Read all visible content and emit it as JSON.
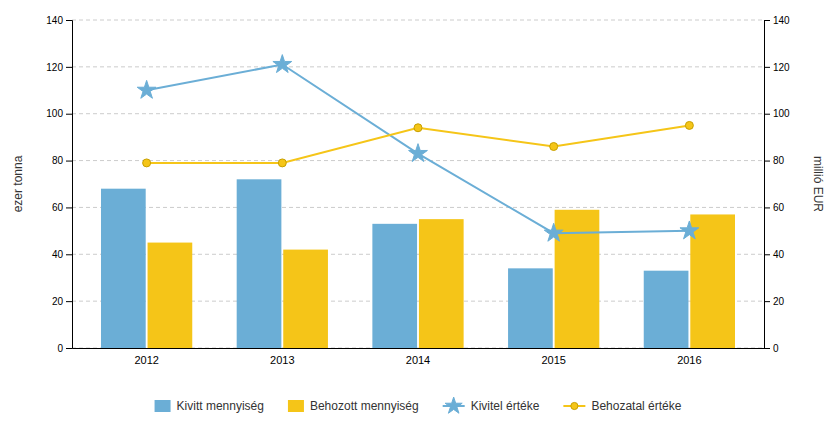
{
  "chart_data": {
    "type": "bar",
    "categories": [
      "2012",
      "2013",
      "2014",
      "2015",
      "2016"
    ],
    "ylabel": "ezer tonna",
    "y2label": "millió EUR",
    "ylim": [
      0,
      140
    ],
    "yticks": [
      0,
      20,
      40,
      60,
      80,
      100,
      120,
      140
    ],
    "y2lim": [
      0,
      140
    ],
    "y2ticks": [
      0,
      20,
      40,
      60,
      80,
      100,
      120,
      140
    ],
    "grid": true,
    "legend": "bottom",
    "series": [
      {
        "name": "Kivitt mennyiség",
        "type": "bar",
        "color": "#6BAED6",
        "values": [
          68,
          72,
          53,
          34,
          33
        ]
      },
      {
        "name": "Behozott mennyiség",
        "type": "bar",
        "color": "#F5C518",
        "values": [
          45,
          42,
          55,
          59,
          57
        ]
      },
      {
        "name": "Kivitel értéke",
        "type": "line",
        "axis": "y2",
        "marker": "star",
        "color": "#6BAED6",
        "values": [
          110,
          121,
          83,
          49,
          50
        ]
      },
      {
        "name": "Behozatal értéke",
        "type": "line",
        "axis": "y2",
        "marker": "circle",
        "color": "#F5C518",
        "values": [
          79,
          79,
          94,
          86,
          95
        ]
      }
    ]
  }
}
